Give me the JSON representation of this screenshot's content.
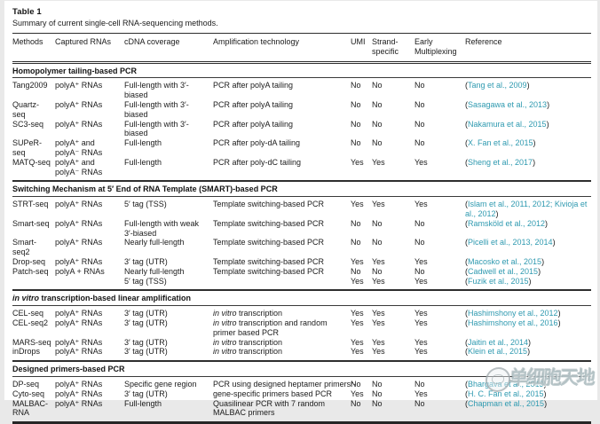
{
  "caption": {
    "label": "Table 1",
    "text": "Summary of current single-cell RNA-sequencing methods."
  },
  "colors": {
    "link_teal": "#2f9ab0",
    "text": "#1b1b1b",
    "rule": "#2e2e2e",
    "page_background": "#ffffff",
    "outer_background": "#e9e9e9"
  },
  "watermark": {
    "logo_icon": "circular-badge-icon",
    "text": "单细胞天地"
  },
  "table": {
    "columns": [
      "Methods",
      "Captured RNAs",
      "cDNA coverage",
      "Amplification technology",
      "UMI",
      "Strand-specific",
      "Early Multiplexing",
      "Reference"
    ],
    "sections": [
      {
        "title": "Homopolymer tailing-based PCR",
        "rows": [
          {
            "method": "Tang2009",
            "captured": "polyA⁺ RNAs",
            "coverage": "Full-length with 3′-biased",
            "amp": "PCR after polyA tailing",
            "umi": "No",
            "strand": "No",
            "early": "No",
            "refs": [
              "(Tang et al., 2009)"
            ]
          },
          {
            "method": "Quartz-seq",
            "captured": "polyA⁺ RNAs",
            "coverage": "Full-length with 3′-biased",
            "amp": "PCR after polyA tailing",
            "umi": "No",
            "strand": "No",
            "early": "No",
            "refs": [
              "(Sasagawa et al., 2013)"
            ]
          },
          {
            "method": "SC3-seq",
            "captured": "polyA⁺ RNAs",
            "coverage": "Full-length with 3′-biased",
            "amp": "PCR after polyA tailing",
            "umi": "No",
            "strand": "No",
            "early": "No",
            "refs": [
              "(Nakamura et al., 2015)"
            ]
          },
          {
            "method": "SUPeR-seq",
            "captured": "polyA⁺ and polyA⁻ RNAs",
            "coverage": "Full-length",
            "amp": "PCR after poly-dA tailing",
            "umi": "No",
            "strand": "No",
            "early": "No",
            "refs": [
              "(X. Fan et al., 2015)"
            ]
          },
          {
            "method": "MATQ-seq",
            "captured": "polyA⁺ and polyA⁻ RNAs",
            "coverage": "Full-length",
            "amp": "PCR after poly-dC tailing",
            "umi": "Yes",
            "strand": "Yes",
            "early": "Yes",
            "refs": [
              "(Sheng et al., 2017)"
            ]
          }
        ]
      },
      {
        "title": "Switching Mechanism at 5′ End of RNA Template (SMART)-based PCR",
        "rows": [
          {
            "method": "STRT-seq",
            "captured": "polyA⁺ RNAs",
            "coverage": "5′ tag (TSS)",
            "amp": "Template switching-based PCR",
            "umi": "Yes",
            "strand": "Yes",
            "early": "Yes",
            "refs": [
              "(Islam et al., 2011, 2012; Kivioja et al., 2012)"
            ]
          },
          {
            "method": "Smart-seq",
            "captured": "polyA⁺ RNAs",
            "coverage": "Full-length with weak 3′-biased",
            "amp": "Template switching-based PCR",
            "umi": "No",
            "strand": "No",
            "early": "No",
            "refs": [
              "(Ramsköld et al., 2012)"
            ]
          },
          {
            "method": "Smart-seq2",
            "captured": "polyA⁺ RNAs",
            "coverage": "Nearly full-length",
            "amp": "Template switching-based PCR",
            "umi": "No",
            "strand": "No",
            "early": "No",
            "refs": [
              "(Picelli et al., 2013, 2014)"
            ]
          },
          {
            "method": "Drop-seq",
            "captured": "polyA⁺ RNAs",
            "coverage": "3′ tag (UTR)",
            "amp": "Template switching-based PCR",
            "umi": "Yes",
            "strand": "Yes",
            "early": "Yes",
            "refs": [
              "(Macosko et al., 2015)"
            ]
          },
          {
            "method": "Patch-seq",
            "captured": "polyA + RNAs",
            "coverage": [
              "Nearly full-length",
              "5′ tag (TSS)"
            ],
            "amp": [
              "Template switching-based PCR"
            ],
            "umi": [
              "No",
              "Yes"
            ],
            "strand": [
              "No",
              "Yes"
            ],
            "early": [
              "No",
              "Yes"
            ],
            "refs": [
              "(Cadwell et al., 2015)",
              "(Fuzik et al., 2015)"
            ]
          }
        ]
      },
      {
        "title": "in vitro transcription-based linear amplification",
        "title_italic_prefix": "in vitro",
        "rows": [
          {
            "method": "CEL-seq",
            "captured": "polyA⁺ RNAs",
            "coverage": "3′ tag (UTR)",
            "amp": "in vitro transcription",
            "amp_italic_prefix": "in vitro",
            "umi": "Yes",
            "strand": "Yes",
            "early": "Yes",
            "refs": [
              "(Hashimshony et al., 2012)"
            ]
          },
          {
            "method": "CEL-seq2",
            "captured": "polyA⁺ RNAs",
            "coverage": "3′ tag (UTR)",
            "amp": "in vitro transcription and random primer based PCR",
            "amp_italic_prefix": "in vitro",
            "umi": "Yes",
            "strand": "Yes",
            "early": "Yes",
            "refs": [
              "(Hashimshony et al., 2016)"
            ]
          },
          {
            "method": "MARS-seq",
            "captured": "polyA⁺ RNAs",
            "coverage": "3′ tag (UTR)",
            "amp": "in vitro transcription",
            "amp_italic_prefix": "in vitro",
            "umi": "Yes",
            "strand": "Yes",
            "early": "Yes",
            "refs": [
              "(Jaitin et al., 2014)"
            ]
          },
          {
            "method": "inDrops",
            "captured": "polyA⁺ RNAs",
            "coverage": "3′ tag (UTR)",
            "amp": "in vitro transcription",
            "amp_italic_prefix": "in vitro",
            "umi": "Yes",
            "strand": "Yes",
            "early": "Yes",
            "refs": [
              "(Klein et al., 2015)"
            ]
          }
        ]
      },
      {
        "title": "Designed primers-based PCR",
        "rows": [
          {
            "method": "DP-seq",
            "captured": "polyA⁺ RNAs",
            "coverage": "Specific gene region",
            "amp": "PCR using designed heptamer primersr-",
            "amp_nowrap": true,
            "umi": "No",
            "strand": "No",
            "early": "No",
            "refs": [
              "(Bhargava et al., 2013)"
            ]
          },
          {
            "method": "Cyto-seq",
            "captured": "polyA⁺ RNAs",
            "coverage": "3′ tag (UTR)",
            "amp": "gene-specific primers based PCR",
            "umi": "Yes",
            "strand": "No",
            "early": "Yes",
            "refs": [
              "(H. C. Fan et al., 2015)"
            ]
          },
          {
            "method": "MALBAC-RNA",
            "captured": "polyA⁺ RNAs",
            "coverage": "Full-length",
            "amp": "Quasilinear PCR with 7 random MALBAC primers",
            "umi": "No",
            "strand": "No",
            "early": "No",
            "refs": [
              "(Chapman et al., 2015)"
            ]
          }
        ]
      }
    ]
  }
}
